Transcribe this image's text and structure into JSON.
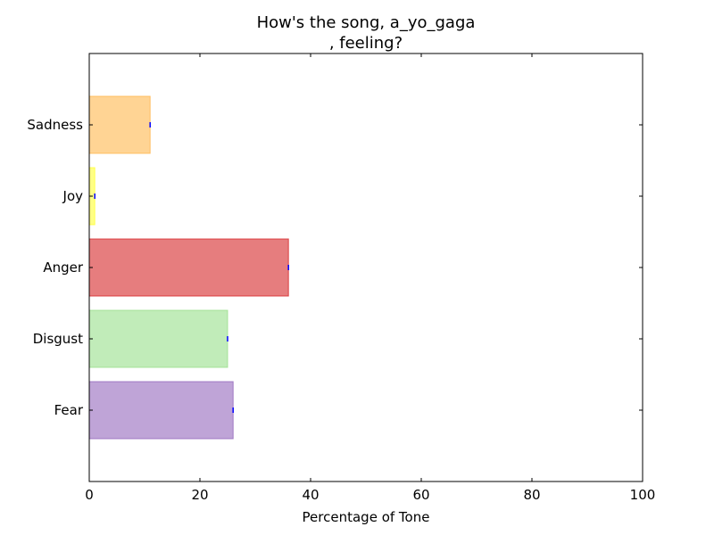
{
  "chart_data": {
    "type": "bar",
    "orientation": "horizontal",
    "title_lines": [
      "How's the song, a_yo_gaga",
      ", feeling?"
    ],
    "xlabel": "Percentage of Tone",
    "ylabel": "",
    "xlim": [
      0,
      100
    ],
    "x_ticks": [
      "0",
      "20",
      "40",
      "60",
      "80",
      "100"
    ],
    "categories": [
      "Fear",
      "Disgust",
      "Anger",
      "Joy",
      "Sadness"
    ],
    "values": [
      26,
      25,
      36,
      1,
      11
    ],
    "colors": [
      "#9467bd",
      "#98df8a",
      "#d62728",
      "#ffff33",
      "#ffb74d"
    ],
    "bar_opacity": 0.6,
    "grid": false
  }
}
